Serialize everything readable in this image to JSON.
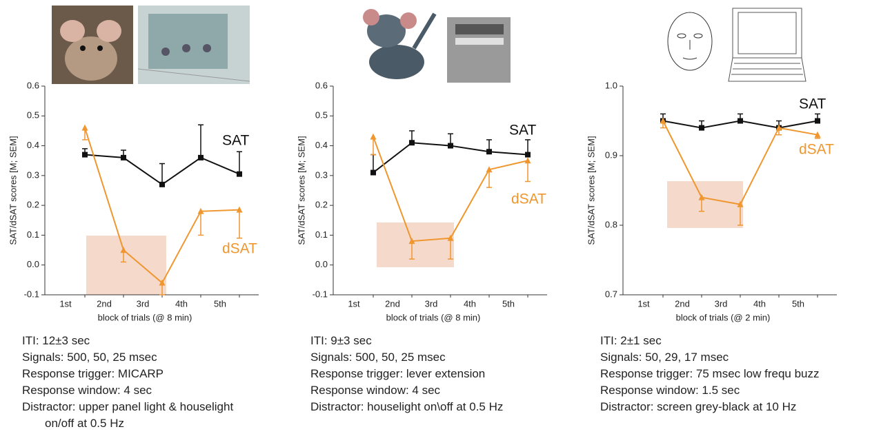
{
  "chart_data": [
    {
      "type": "line",
      "x_label": "block of trials (@ 8 min)",
      "y_label": "SAT/dSAT scores [M; SEM]",
      "categories": [
        "1st",
        "2nd",
        "3rd",
        "4th",
        "5th"
      ],
      "ylim": [
        -0.1,
        0.6
      ],
      "yticks": [
        -0.1,
        {
          "value": 0,
          "label": "0.0"
        },
        0.1,
        0.2,
        0.3,
        0.4,
        0.5,
        0.6
      ],
      "series": [
        {
          "name": "SAT",
          "color": "#111111",
          "values": [
            0.37,
            0.36,
            0.27,
            0.36,
            0.305
          ],
          "errors": [
            0.02,
            0.025,
            0.07,
            0.11,
            0.075
          ]
        },
        {
          "name": "dSAT",
          "color": "#f0962e",
          "values": [
            0.46,
            0.05,
            -0.06,
            0.18,
            0.185
          ],
          "errors": [
            0.04,
            0.04,
            0.04,
            0.08,
            0.095
          ]
        }
      ],
      "notes": [
        "ITI: 12±3 sec",
        "Signals: 500, 50, 25 msec",
        "Response trigger: MICARP",
        "Response window: 4 sec",
        "Distractor: upper panel light & houselight",
        "on/off at 0.5 Hz"
      ]
    },
    {
      "type": "line",
      "x_label": "block of trials (@ 8 min)",
      "y_label": "SAT/dSAT scores [M; SEM]",
      "categories": [
        "1st",
        "2nd",
        "3rd",
        "4th",
        "5th"
      ],
      "ylim": [
        -0.1,
        0.6
      ],
      "yticks": [
        -0.1,
        {
          "value": 0,
          "label": "0.0"
        },
        0.1,
        0.2,
        0.3,
        0.4,
        0.5,
        0.6
      ],
      "series": [
        {
          "name": "SAT",
          "color": "#111111",
          "values": [
            0.31,
            0.41,
            0.4,
            0.38,
            0.37
          ],
          "errors": [
            0.06,
            0.04,
            0.04,
            0.04,
            0.05
          ]
        },
        {
          "name": "dSAT",
          "color": "#f0962e",
          "values": [
            0.43,
            0.08,
            0.09,
            0.32,
            0.35
          ],
          "errors": [
            0.06,
            0.06,
            0.07,
            0.06,
            0.07
          ]
        }
      ],
      "notes": [
        "ITI: 9±3 sec",
        "Signals: 500, 50, 25 msec",
        "Response trigger: lever extension",
        "Response window: 4 sec",
        "Distractor: houselight on\\off at 0.5 Hz"
      ]
    },
    {
      "type": "line",
      "x_label": "block of trials (@ 2 min)",
      "y_label": "SAT/dSAT scores [M; SEM]",
      "categories": [
        "1st",
        "2nd",
        "3rd",
        "4th",
        "5th"
      ],
      "ylim": [
        0.7,
        1
      ],
      "yticks": [
        0.7,
        0.8,
        0.9,
        {
          "value": 1,
          "label": "1.0"
        }
      ],
      "series": [
        {
          "name": "SAT",
          "color": "#111111",
          "values": [
            0.95,
            0.94,
            0.95,
            0.94,
            0.95
          ],
          "errors": [
            0.01,
            0.01,
            0.01,
            0.01,
            0.01
          ]
        },
        {
          "name": "dSAT",
          "color": "#f0962e",
          "values": [
            0.95,
            0.84,
            0.83,
            0.94,
            0.93
          ],
          "errors": [
            0.01,
            0.02,
            0.03,
            0.01,
            0.005
          ]
        }
      ],
      "notes": [
        "ITI: 2±1 sec",
        "Signals: 50, 29, 17 msec",
        "Response trigger: 75 msec low frequ buzz",
        "Response window: 1.5 sec",
        "Distractor: screen grey-black at 10 Hz"
      ]
    }
  ]
}
